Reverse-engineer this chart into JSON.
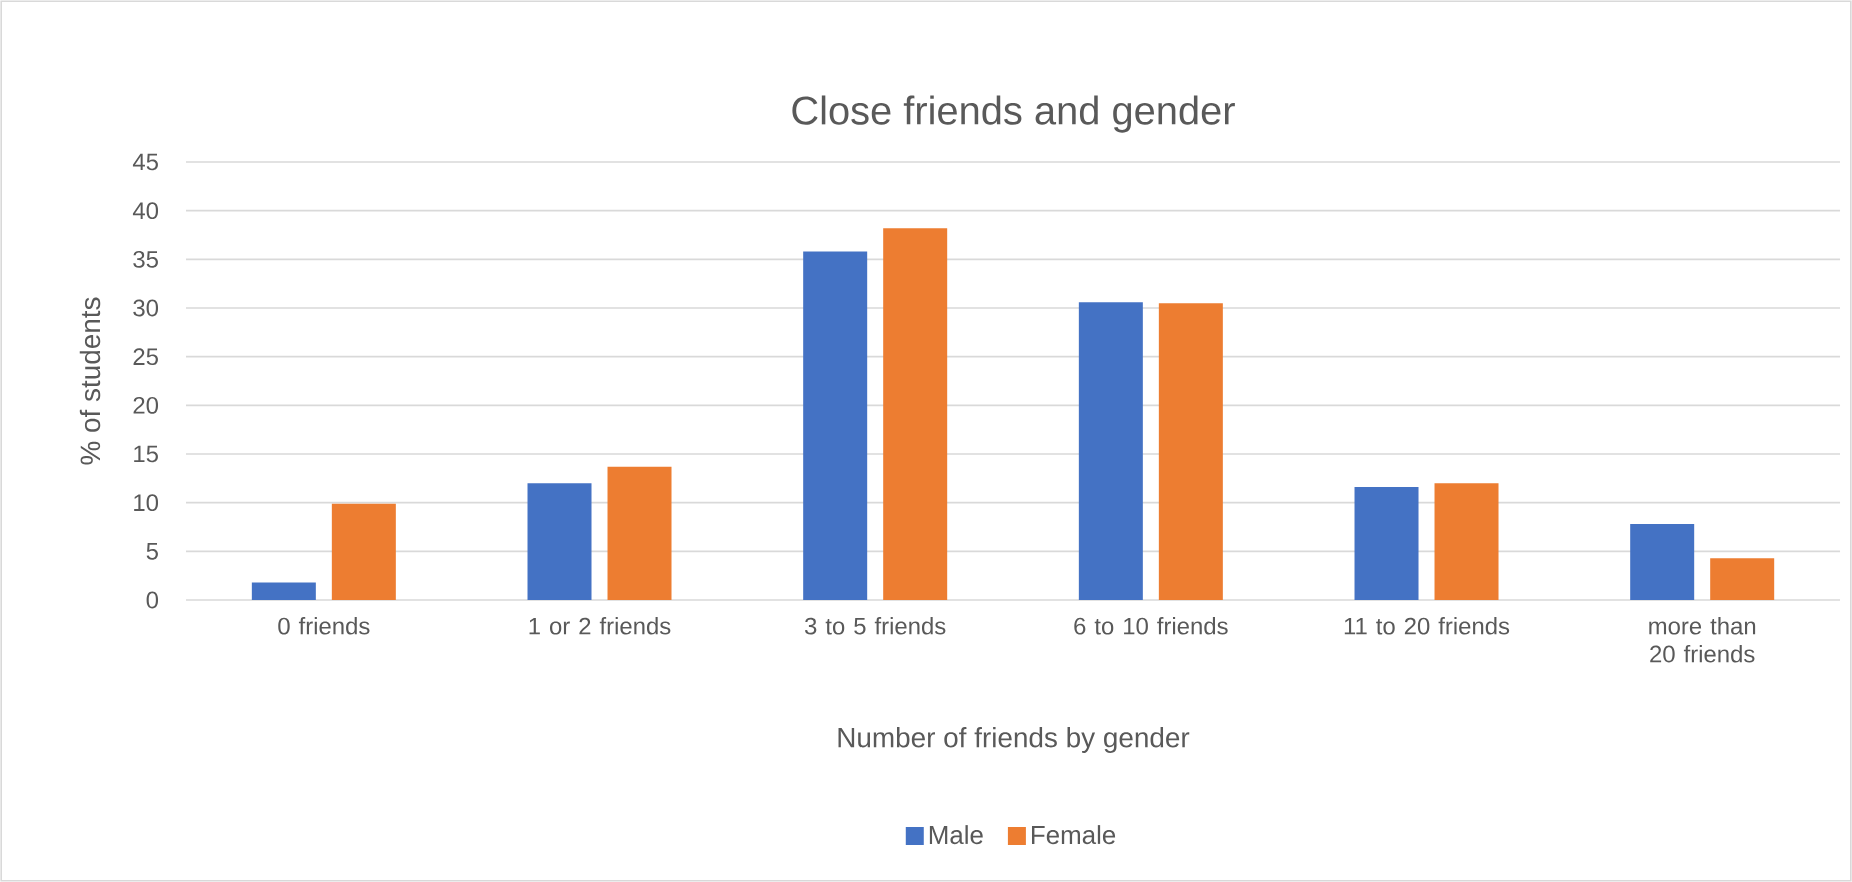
{
  "chart_data": {
    "type": "bar",
    "title": "Close friends and gender",
    "xlabel": "Number of friends by gender",
    "ylabel": "% of students",
    "categories": [
      "0 friends",
      "1 or 2 friends",
      "3 to 5 friends",
      "6 to 10 friends",
      "11 to 20 friends",
      "more than 20 friends"
    ],
    "series": [
      {
        "name": "Male",
        "color": "#4472c4",
        "values": [
          1.8,
          12.0,
          35.8,
          30.6,
          11.6,
          7.8
        ]
      },
      {
        "name": "Female",
        "color": "#ed7d31",
        "values": [
          9.9,
          13.7,
          38.2,
          30.5,
          12.0,
          4.3
        ]
      }
    ],
    "ylim": [
      0,
      45
    ],
    "yticks": [
      0,
      5,
      10,
      15,
      20,
      25,
      30,
      35,
      40,
      45
    ],
    "grid": "y",
    "legend": "bottom"
  }
}
